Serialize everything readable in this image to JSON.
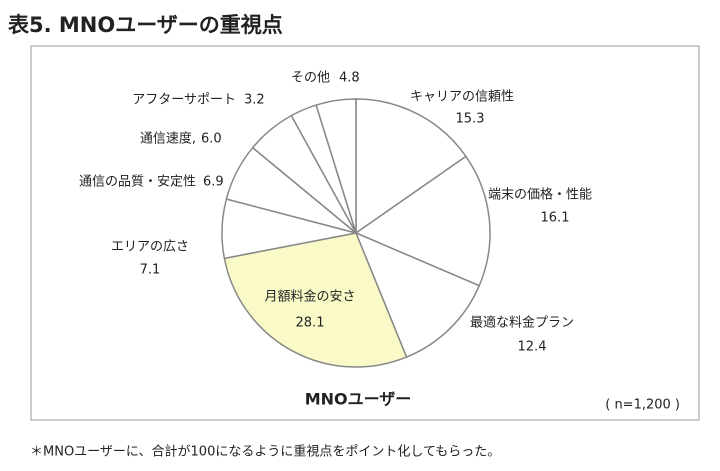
{
  "chart_data": {
    "type": "pie",
    "title": "表5. MNOユーザーの重視点",
    "center_label": "MNOユーザー",
    "note": "( n=1,200 )",
    "footnote": "＊MNOユーザーに、合計が100になるように重視点をポイント化してもらった。",
    "categories": [
      "キャリアの信頼性",
      "端末の価格・性能",
      "最適な料金プラン",
      "月額料金の安さ",
      "エリアの広さ",
      "通信の品質・安定性",
      "通信速度,",
      "アフターサポート",
      "その他"
    ],
    "values": [
      15.3,
      16.1,
      12.4,
      28.1,
      7.1,
      6.9,
      6.0,
      3.2,
      4.8
    ],
    "value_labels": [
      "15.3",
      "16.1",
      "12.4",
      "28.1",
      "7.1",
      "6.9",
      "6.0",
      "3.2",
      "4.8"
    ],
    "colors": [
      "#ffffff",
      "#ffffff",
      "#ffffff",
      "#fafac8",
      "#ffffff",
      "#ffffff",
      "#ffffff",
      "#ffffff",
      "#ffffff"
    ]
  }
}
